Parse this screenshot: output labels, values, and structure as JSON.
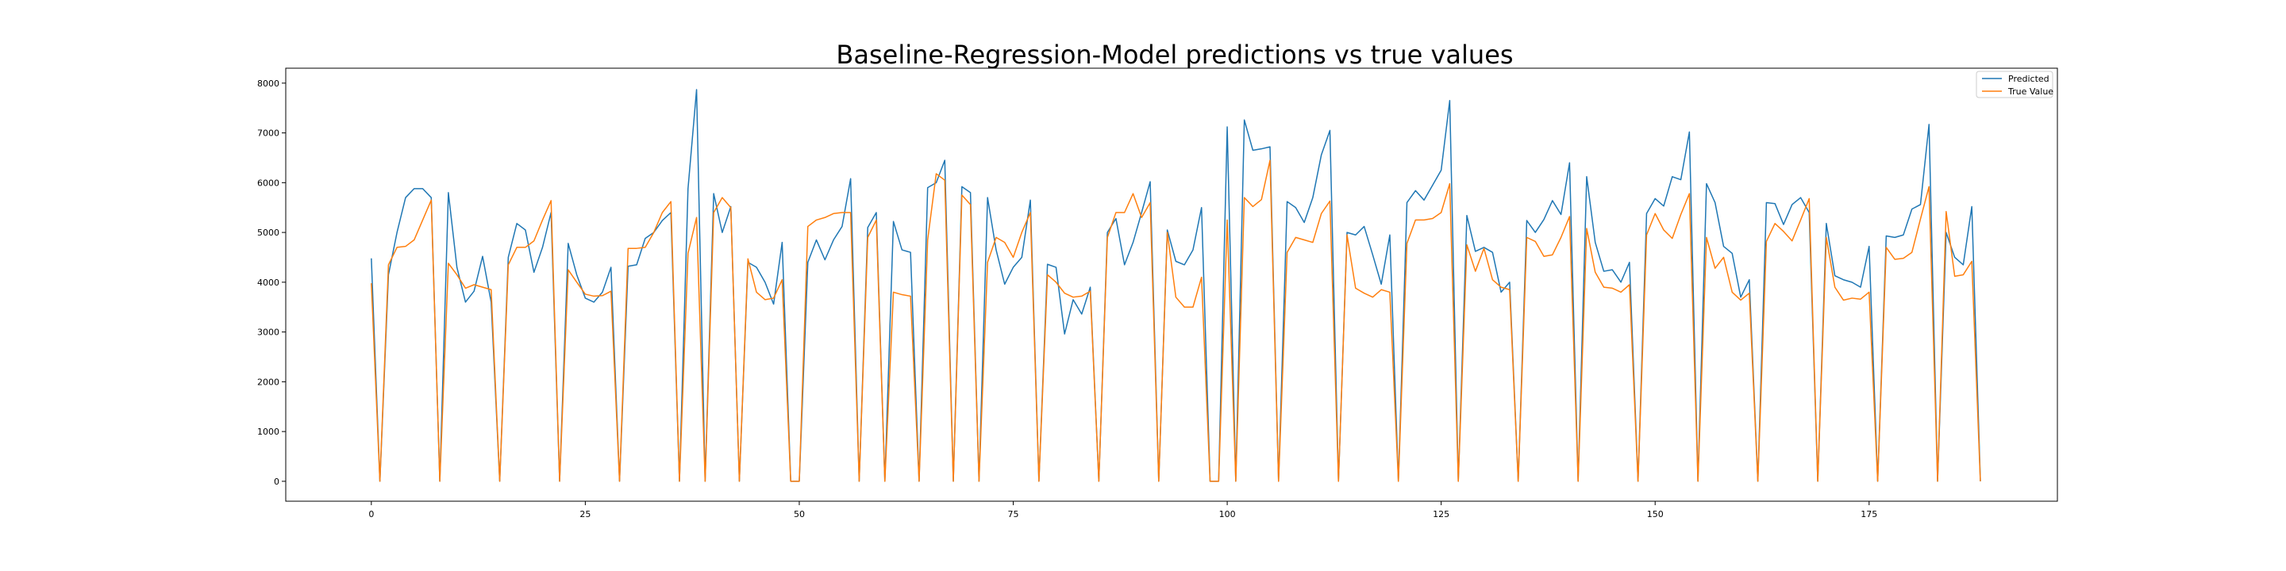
{
  "chart_data": {
    "type": "line",
    "title": "Baseline-Regression-Model predictions vs true values",
    "xlabel": "",
    "ylabel": "",
    "xlim": [
      -10,
      197
    ],
    "ylim": [
      -400,
      8300
    ],
    "xticks": [
      0,
      25,
      50,
      75,
      100,
      125,
      150,
      175
    ],
    "yticks": [
      0,
      1000,
      2000,
      3000,
      4000,
      5000,
      6000,
      7000,
      8000
    ],
    "grid": false,
    "legend_position": "top-right",
    "series": [
      {
        "name": "Predicted",
        "color": "#1f77b4",
        "values": [
          4480,
          0,
          4150,
          5000,
          5700,
          5880,
          5880,
          5700,
          0,
          5800,
          4300,
          3600,
          3820,
          4520,
          3600,
          0,
          4500,
          5180,
          5050,
          4200,
          4700,
          5400,
          0,
          4780,
          4150,
          3680,
          3600,
          3800,
          4300,
          0,
          4320,
          4350,
          4880,
          5000,
          5240,
          5400,
          0,
          5880,
          7870,
          0,
          5780,
          5000,
          5520,
          0,
          4400,
          4300,
          4000,
          3560,
          4800,
          0,
          0,
          4400,
          4850,
          4450,
          4850,
          5120,
          6080,
          0,
          5100,
          5400,
          0,
          5220,
          4650,
          4600,
          0,
          5900,
          6000,
          6450,
          0,
          5920,
          5800,
          0,
          5700,
          4650,
          3960,
          4300,
          4500,
          5650,
          0,
          4360,
          4300,
          2960,
          3650,
          3360,
          3900,
          0,
          5000,
          5280,
          4350,
          4800,
          5400,
          6020,
          0,
          5050,
          4420,
          4350,
          4650,
          5500,
          0,
          0,
          7120,
          0,
          7260,
          6650,
          6680,
          6720,
          0,
          5620,
          5500,
          5200,
          5700,
          6560,
          7050,
          0,
          5000,
          4950,
          5120,
          4550,
          3960,
          4950,
          0,
          5600,
          5840,
          5650,
          5950,
          6250,
          7650,
          0,
          5340,
          4620,
          4700,
          4600,
          3800,
          4000,
          0,
          5240,
          5000,
          5260,
          5640,
          5360,
          6400,
          0,
          6120,
          4800,
          4220,
          4250,
          4000,
          4400,
          0,
          5380,
          5680,
          5530,
          6120,
          6060,
          7020,
          0,
          5980,
          5600,
          4720,
          4580,
          3700,
          4050,
          0,
          5600,
          5580,
          5160,
          5560,
          5700,
          5400,
          0,
          5180,
          4130,
          4050,
          4000,
          3900,
          4720,
          0,
          4930,
          4900,
          4950,
          5470,
          5560,
          7170,
          0,
          5000,
          4500,
          4350,
          5520,
          0
        ]
      },
      {
        "name": "True Value",
        "color": "#ff7f0e",
        "values": [
          3980,
          0,
          4350,
          4700,
          4720,
          4850,
          5250,
          5650,
          0,
          4380,
          4150,
          3880,
          3950,
          3900,
          3850,
          0,
          4350,
          4700,
          4700,
          4830,
          5250,
          5640,
          0,
          4250,
          4000,
          3760,
          3720,
          3730,
          3820,
          0,
          4680,
          4680,
          4700,
          5000,
          5400,
          5620,
          0,
          4580,
          5300,
          0,
          5400,
          5700,
          5500,
          0,
          4470,
          3800,
          3650,
          3680,
          4050,
          0,
          0,
          5120,
          5250,
          5300,
          5380,
          5400,
          5400,
          0,
          4900,
          5250,
          0,
          3800,
          3750,
          3720,
          0,
          4850,
          6180,
          6050,
          0,
          5750,
          5560,
          0,
          4400,
          4900,
          4800,
          4500,
          5000,
          5400,
          0,
          4150,
          4000,
          3780,
          3700,
          3720,
          3820,
          0,
          4900,
          5400,
          5400,
          5780,
          5300,
          5600,
          0,
          5000,
          3700,
          3500,
          3500,
          4100,
          0,
          0,
          5250,
          0,
          5700,
          5520,
          5660,
          6450,
          0,
          4600,
          4900,
          4850,
          4800,
          5380,
          5630,
          0,
          4950,
          3880,
          3780,
          3700,
          3850,
          3800,
          0,
          4780,
          5250,
          5250,
          5280,
          5400,
          5980,
          0,
          4750,
          4220,
          4680,
          4050,
          3900,
          3850,
          0,
          4900,
          4820,
          4520,
          4550,
          4900,
          5320,
          0,
          5080,
          4200,
          3900,
          3880,
          3800,
          3950,
          0,
          4950,
          5380,
          5050,
          4880,
          5360,
          5780,
          0,
          4900,
          4280,
          4500,
          3800,
          3640,
          3780,
          0,
          4820,
          5180,
          5020,
          4830,
          5250,
          5680,
          0,
          4900,
          3900,
          3640,
          3680,
          3660,
          3800,
          0,
          4700,
          4460,
          4480,
          4600,
          5270,
          5920,
          0,
          5420,
          4120,
          4150,
          4420,
          0
        ]
      }
    ]
  }
}
